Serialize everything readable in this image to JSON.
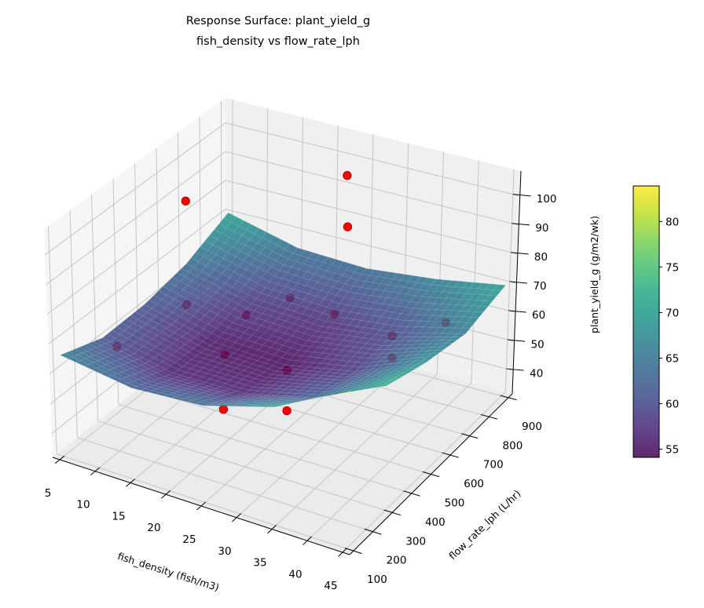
{
  "chart_data": {
    "type": "surface3d",
    "title": [
      "Response Surface: plant_yield_g",
      "fish_density vs flow_rate_lph"
    ],
    "xlabel": "fish_density (fish/m3)",
    "ylabel": "flow_rate_lph (L/hr)",
    "zlabel": "plant_yield_g (g/m2/wk)",
    "xlim": [
      4,
      46
    ],
    "ylim": [
      80,
      920
    ],
    "zlim": [
      32,
      108.6
    ],
    "x_ticks": [
      "5",
      "10",
      "15",
      "20",
      "25",
      "30",
      "35",
      "40",
      "45"
    ],
    "y_ticks": [
      "100",
      "200",
      "300",
      "400",
      "500",
      "600",
      "700",
      "800",
      "900"
    ],
    "z_ticks": [
      "40",
      "50",
      "60",
      "70",
      "80",
      "90",
      "100"
    ],
    "grid": true,
    "view": {
      "elevation_deg": 30,
      "azimuth_deg": -60
    },
    "surface": {
      "x": [
        5,
        15,
        25,
        35,
        45
      ],
      "y": [
        100,
        300,
        500,
        700,
        900
      ],
      "z_rows_by_y": [
        [
          66.0,
          62.4,
          64.0,
          70.9,
          83.0
        ],
        [
          60.9,
          56.1,
          56.5,
          62.2,
          73.1
        ],
        [
          61.2,
          55.2,
          54.4,
          58.9,
          68.7
        ],
        [
          64.0,
          58.5,
          57.2,
          60.0,
          66.0
        ],
        [
          70.5,
          64.5,
          63.5,
          66.0,
          70.0
        ]
      ],
      "colormap": "viridis",
      "alpha": 0.85
    },
    "observed_points": {
      "color": "#ff0000",
      "edge_color": "#8b0000",
      "points": [
        {
          "x": 7,
          "y": 300,
          "z": 59.4
        },
        {
          "x": 5,
          "y": 700,
          "z": 85.6
        },
        {
          "x": 22,
          "y": 900,
          "z": 93.8
        },
        {
          "x": 28,
          "y": 700,
          "z": 91.5
        },
        {
          "x": 22,
          "y": 300,
          "z": 49
        },
        {
          "x": 31,
          "y": 300,
          "z": 55
        },
        {
          "x": 5,
          "y": 700,
          "z": 50
        },
        {
          "x": 14,
          "y": 900,
          "z": 46.5
        },
        {
          "x": 20.5,
          "y": 900,
          "z": 45
        },
        {
          "x": 13.6,
          "y": 700,
          "z": 52
        },
        {
          "x": 16.4,
          "y": 500,
          "z": 52
        },
        {
          "x": 36.6,
          "y": 900,
          "z": 52
        },
        {
          "x": 28.9,
          "y": 900,
          "z": 42.7
        },
        {
          "x": 25.3,
          "y": 500,
          "z": 52.7
        },
        {
          "x": 34.6,
          "y": 700,
          "z": 51
        }
      ]
    },
    "colorbar": {
      "range": [
        54.1,
        83.9
      ],
      "ticks": [
        "55",
        "60",
        "65",
        "70",
        "75",
        "80"
      ]
    }
  },
  "colors": {
    "pane_bottom": "#ebebeb",
    "pane_left": "#f5f5f5",
    "pane_back": "#f0f0f0",
    "grid": "#c4c4c4"
  }
}
